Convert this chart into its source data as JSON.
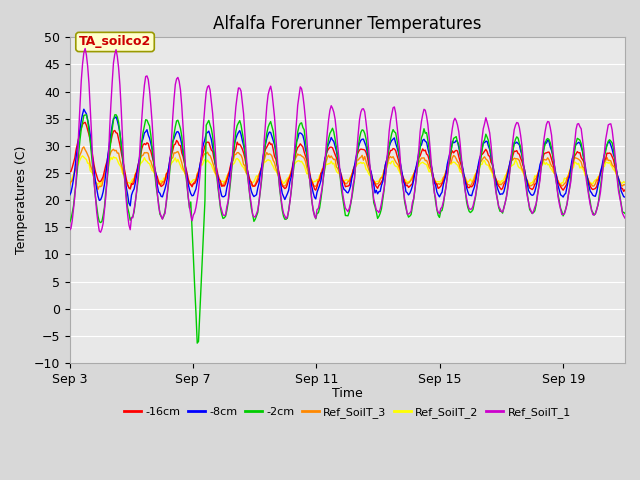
{
  "title": "Alfalfa Forerunner Temperatures",
  "xlabel": "Time",
  "ylabel": "Temperatures (C)",
  "ylim": [
    -10,
    50
  ],
  "yticks": [
    -10,
    -5,
    0,
    5,
    10,
    15,
    20,
    25,
    30,
    35,
    40,
    45,
    50
  ],
  "xtick_labels": [
    "Sep 3",
    "Sep 7",
    "Sep 11",
    "Sep 15",
    "Sep 19"
  ],
  "xtick_positions": [
    0,
    4,
    8,
    12,
    16
  ],
  "legend_labels": [
    "-16cm",
    "-8cm",
    "-2cm",
    "Ref_SoilT_3",
    "Ref_SoilT_2",
    "Ref_SoilT_1"
  ],
  "legend_colors": [
    "#ff0000",
    "#0000ff",
    "#00cc00",
    "#ff8800",
    "#ffff00",
    "#cc00cc"
  ],
  "annotation_text": "TA_soilco2",
  "bg_color": "#d8d8d8",
  "plot_bg_color": "#e8e8e8",
  "title_fontsize": 12,
  "axis_fontsize": 9,
  "legend_fontsize": 8
}
